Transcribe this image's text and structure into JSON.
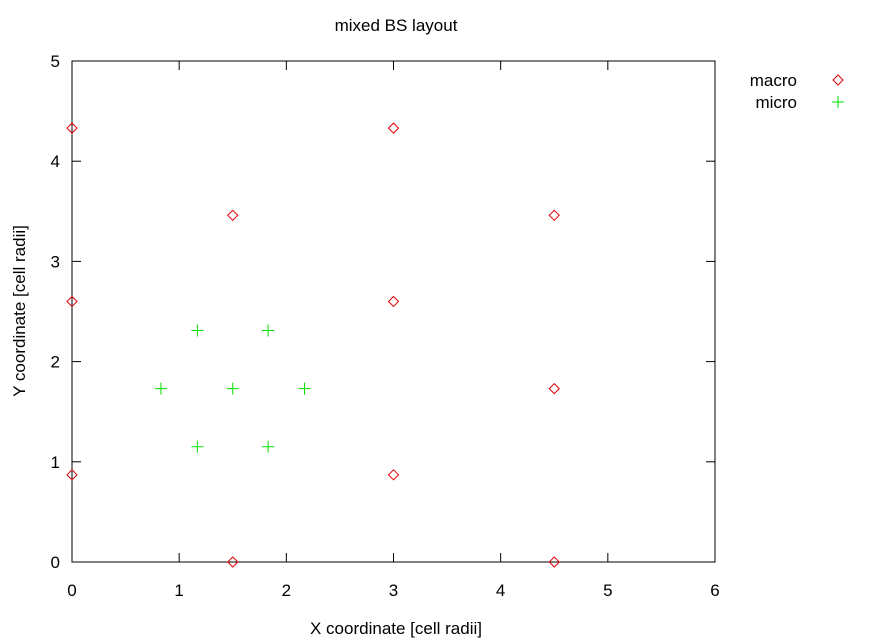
{
  "chart_data": {
    "type": "scatter",
    "title": "mixed BS layout",
    "xlabel": "X coordinate [cell radii]",
    "ylabel": "Y coordinate [cell radii]",
    "xlim": [
      0,
      6
    ],
    "ylim": [
      0,
      5
    ],
    "x_ticks": [
      "0",
      "1",
      "2",
      "3",
      "4",
      "5",
      "6"
    ],
    "y_ticks": [
      "0",
      "1",
      "2",
      "3",
      "4",
      "5"
    ],
    "grid": false,
    "legend_position": "outside-top-right",
    "series": [
      {
        "name": "macro",
        "marker": "diamond",
        "color": "#e00000",
        "points": [
          [
            0,
            0.87
          ],
          [
            0,
            2.6
          ],
          [
            0,
            4.33
          ],
          [
            1.5,
            0
          ],
          [
            1.5,
            3.46
          ],
          [
            3,
            0.87
          ],
          [
            3,
            2.6
          ],
          [
            3,
            4.33
          ],
          [
            4.5,
            0
          ],
          [
            4.5,
            1.73
          ],
          [
            4.5,
            3.46
          ]
        ]
      },
      {
        "name": "micro",
        "marker": "plus",
        "color": "#00e000",
        "points": [
          [
            0.83,
            1.73
          ],
          [
            1.17,
            1.15
          ],
          [
            1.17,
            2.31
          ],
          [
            1.5,
            1.73
          ],
          [
            1.83,
            1.15
          ],
          [
            1.83,
            2.31
          ],
          [
            2.17,
            1.73
          ]
        ]
      }
    ]
  }
}
